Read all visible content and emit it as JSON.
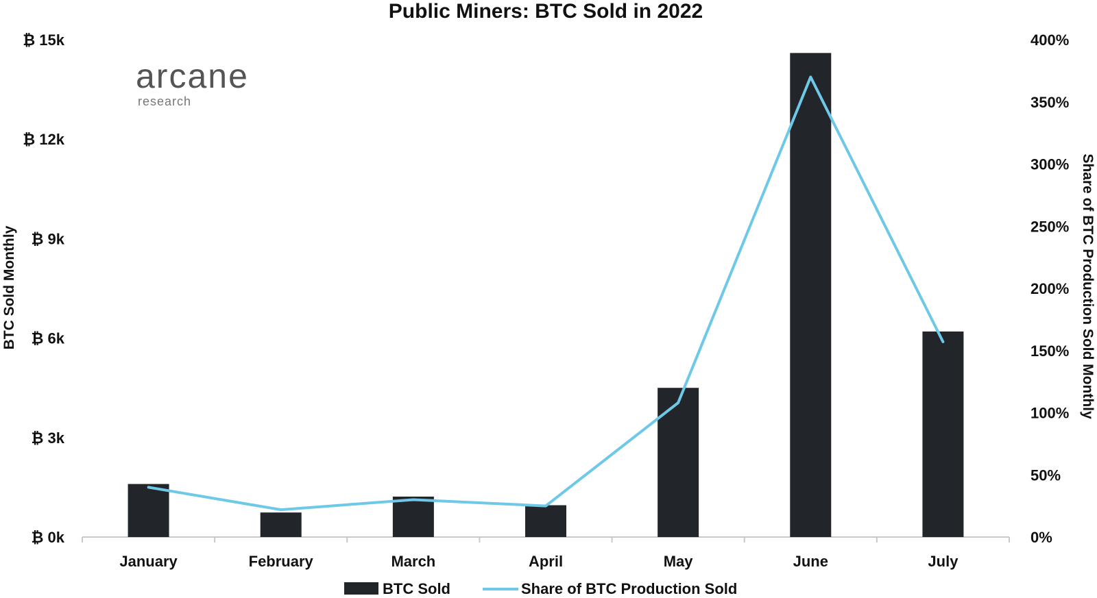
{
  "chart_data": {
    "type": "bar",
    "title": "Public Miners: BTC Sold in 2022",
    "categories": [
      "January",
      "February",
      "March",
      "April",
      "May",
      "June",
      "July"
    ],
    "series": [
      {
        "name": "BTC Sold",
        "type": "bar",
        "axis": "left",
        "color": "#22262b",
        "values": [
          1600,
          740,
          1220,
          960,
          4500,
          14600,
          6200
        ]
      },
      {
        "name": "Share of BTC Production Sold",
        "type": "line",
        "axis": "right",
        "color": "#6ec8e8",
        "values": [
          40,
          22,
          30,
          25,
          108,
          370,
          157
        ]
      }
    ],
    "ylabel": "BTC Sold Monthly",
    "y2label": "Share of BTC Production Sold Monthly",
    "ylim": [
      0,
      15000
    ],
    "y2lim": [
      0,
      400
    ],
    "yticks": [
      0,
      3000,
      6000,
      9000,
      12000,
      15000
    ],
    "ytick_labels": [
      "₿ 0k",
      "₿ 3k",
      "₿ 6k",
      "₿ 9k",
      "₿ 12k",
      "₿ 15k"
    ],
    "y2ticks": [
      0,
      50,
      100,
      150,
      200,
      250,
      300,
      350,
      400
    ],
    "y2tick_labels": [
      "0%",
      "50%",
      "100%",
      "150%",
      "200%",
      "250%",
      "300%",
      "350%",
      "400%"
    ],
    "grid": false,
    "legend": "bottom"
  },
  "logo": {
    "main": "arcane",
    "sub": "research"
  }
}
